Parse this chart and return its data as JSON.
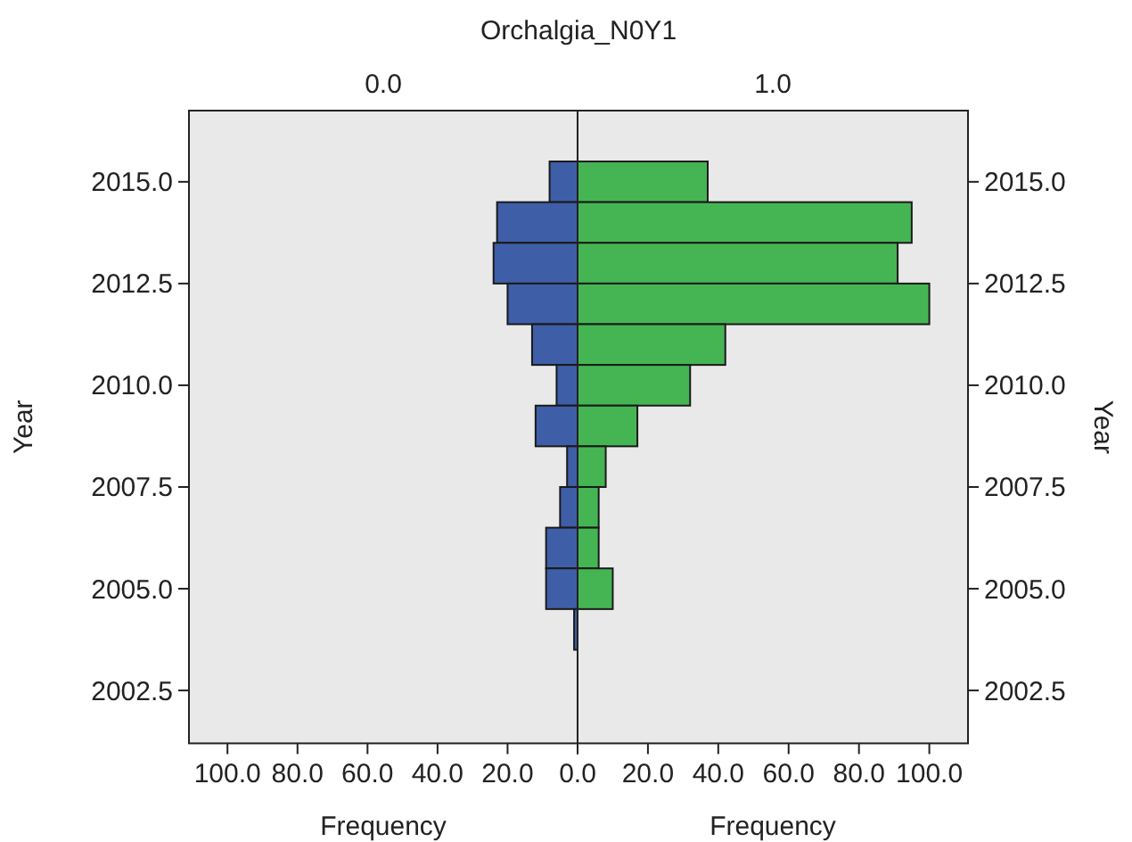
{
  "chart_data": [
    {
      "type": "histogram",
      "orientation": "horizontal",
      "title": "0.0",
      "xlabel": "Frequency",
      "ylabel": "Year",
      "annotations": [
        "Orchalgia_N0Y1"
      ],
      "bins": [
        2015.5,
        2014.5,
        2013.5,
        2012.5,
        2011.5,
        2010.5,
        2009.5,
        2008.5,
        2007.5,
        2006.5,
        2005.5,
        2004.5,
        2003.5
      ],
      "values": [
        8,
        23,
        24,
        20,
        13,
        6,
        12,
        3,
        5,
        9,
        9,
        1
      ],
      "color": "#3f5ea8",
      "xlim": [
        111,
        0
      ],
      "xticks": [
        {
          "value": 100,
          "label": "100.0"
        },
        {
          "value": 80,
          "label": "80.0"
        },
        {
          "value": 60,
          "label": "60.0"
        },
        {
          "value": 40,
          "label": "40.0"
        },
        {
          "value": 20,
          "label": "20.0"
        },
        {
          "value": 0,
          "label": null
        }
      ],
      "ylim": [
        2001.2,
        2016.75
      ],
      "yticks": [
        {
          "value": 2002.5,
          "label": "2002.5"
        },
        {
          "value": 2005,
          "label": "2005.0"
        },
        {
          "value": 2007.5,
          "label": "2007.5"
        },
        {
          "value": 2010,
          "label": "2010.0"
        },
        {
          "value": 2012.5,
          "label": "2012.5"
        },
        {
          "value": 2015,
          "label": "2015.0"
        }
      ]
    },
    {
      "type": "histogram",
      "orientation": "horizontal",
      "title": "1.0",
      "xlabel": "Frequency",
      "ylabel": "Year",
      "bins": [
        2015.5,
        2014.5,
        2013.5,
        2012.5,
        2011.5,
        2010.5,
        2009.5,
        2008.5,
        2007.5,
        2006.5,
        2005.5,
        2004.5,
        2003.5
      ],
      "values": [
        37,
        95,
        91,
        100,
        42,
        32,
        17,
        8,
        6,
        6,
        10,
        0
      ],
      "color": "#45b553",
      "xlim": [
        0,
        111
      ],
      "xticks": [
        {
          "value": 0,
          "label": "0.0"
        },
        {
          "value": 20,
          "label": "20.0"
        },
        {
          "value": 40,
          "label": "40.0"
        },
        {
          "value": 60,
          "label": "60.0"
        },
        {
          "value": 80,
          "label": "80.0"
        },
        {
          "value": 100,
          "label": "100.0"
        }
      ],
      "ylim": [
        2001.2,
        2016.75
      ],
      "yticks": [
        {
          "value": 2002.5,
          "label": "2002.5"
        },
        {
          "value": 2005,
          "label": "2005.0"
        },
        {
          "value": 2007.5,
          "label": "2007.5"
        },
        {
          "value": 2010,
          "label": "2010.0"
        },
        {
          "value": 2012.5,
          "label": "2012.5"
        },
        {
          "value": 2015,
          "label": "2015.0"
        }
      ]
    }
  ]
}
